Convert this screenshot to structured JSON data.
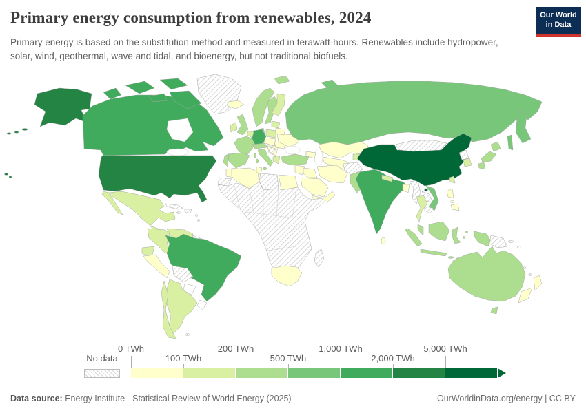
{
  "header": {
    "title": "Primary energy consumption from renewables, 2024",
    "subtitle": "Primary energy is based on the substitution method and measured in terawatt-hours. Renewables include hydropower, solar, wind, geothermal, wave and tidal, and bioenergy, but not traditional biofuels.",
    "logo": {
      "line1": "Our World",
      "line2": "in Data",
      "navy": "#0d2e54",
      "red": "#cf342a"
    }
  },
  "chart_data": {
    "type": "choropleth-world-map",
    "title": "Primary energy consumption from renewables, 2024",
    "unit": "TWh",
    "year": "2024",
    "legend": {
      "no_data_label": "No data",
      "bins": [
        {
          "label": "0 TWh",
          "color": "#ffffcc"
        },
        {
          "label": "100 TWh",
          "color": "#d9f0a3"
        },
        {
          "label": "200 TWh",
          "color": "#addd8e"
        },
        {
          "label": "500 TWh",
          "color": "#78c679"
        },
        {
          "label": "1,000 TWh",
          "color": "#41ab5d"
        },
        {
          "label": "2,000 TWh",
          "color": "#238443"
        },
        {
          "label": "5,000 TWh",
          "color": "#006837"
        }
      ]
    },
    "bin_ranges": [
      "0-100",
      "100-200",
      "200-500",
      "500-1000",
      "1000-2000",
      "2000-5000",
      "5000+"
    ],
    "countries": {
      "alaska": "b5",
      "aleutians": "b5",
      "hawaii": "b5",
      "usa": "b5",
      "canada": "b4",
      "canada-arctic": "b4",
      "greenland": "nd",
      "iceland": "b0",
      "mexico": "b1",
      "baja": "b1",
      "central-america-n": "b1",
      "central-america-s": "nd",
      "cuba": "nd",
      "hispaniola": "nd",
      "jamaica": "nd",
      "antilles": "nd",
      "colombia": "b1",
      "venezuela": "b1",
      "guyana": "nd",
      "suriname": "none",
      "french-guiana": "none",
      "ecuador": "b1",
      "peru": "b0",
      "brazil": "b4",
      "bolivia": "nd",
      "paraguay": "none",
      "uruguay": "none",
      "argentina": "b1",
      "chile": "b1",
      "falklands": "nd",
      "norway": "b2",
      "sweden": "b2",
      "finland": "b1",
      "denmark": "b2",
      "uk": "b2",
      "ireland": "b1",
      "france": "b2",
      "corsica": "b2",
      "spain": "b2",
      "portugal": "b2",
      "germany": "b4",
      "benelux": "b1",
      "alps": "b2",
      "italy": "b2",
      "sicily": "b2",
      "sardinia": "b2",
      "poland": "b1",
      "czech-hungary": "b0",
      "balkans": "b0",
      "serbia": "nd",
      "greece": "b1",
      "romania": "b0",
      "ukraine": "b0",
      "belarus": "b0",
      "baltics": "b1",
      "russia": "b3",
      "kamchatka": "b3",
      "sakhalin": "b3",
      "novaya-zemlya": "b3",
      "svalbard": "b2",
      "kazakhstan": "b0",
      "uzbek-turkmen": "b0",
      "kyrgyz-tajik": "b1",
      "caucasus": "b0",
      "turkey": "b2",
      "levant": "b0",
      "iraq": "b0",
      "saudi": "b0",
      "yemen-oman": "b0",
      "iran": "b0",
      "afghanistan": "nd",
      "pakistan": "b2",
      "india": "b4",
      "nepal": "b1",
      "bangladesh": "b0",
      "sri-lanka": "b0",
      "myanmar": "nd",
      "thailand": "b1",
      "laos": "nd",
      "vietnam": "b3",
      "cambodia": "nd",
      "malaysia": "b2",
      "china": "b6",
      "hainan": "b6",
      "mongolia": "nd",
      "north-korea": "nd",
      "south-korea": "b1",
      "japan": "b2",
      "taiwan": "b1",
      "luzon": "b0",
      "visayas": "b0",
      "mindanao": "b0",
      "sumatra": "b2",
      "java": "b2",
      "borneo": "b2",
      "sulawesi": "b2",
      "moluccas": "b2",
      "lesser-sunda": "b2",
      "west-papua": "b2",
      "png": "nd",
      "new-britain": "nd",
      "melanesia": "nd",
      "australia": "b2",
      "tasmania": "b2",
      "nz-north": "b0",
      "nz-south": "b0",
      "morocco": "b0",
      "western-sahara": "nd",
      "algeria": "b0",
      "tunisia": "b0",
      "libya": "nd",
      "egypt": "b0",
      "africa-sub": "nd",
      "south-africa": "b0",
      "madagascar": "nd"
    }
  },
  "footer": {
    "datasource_label": "Data source:",
    "datasource": " Energy Institute - Statistical Review of World Energy (2025)",
    "credit": "OurWorldinData.org/energy | CC BY"
  }
}
